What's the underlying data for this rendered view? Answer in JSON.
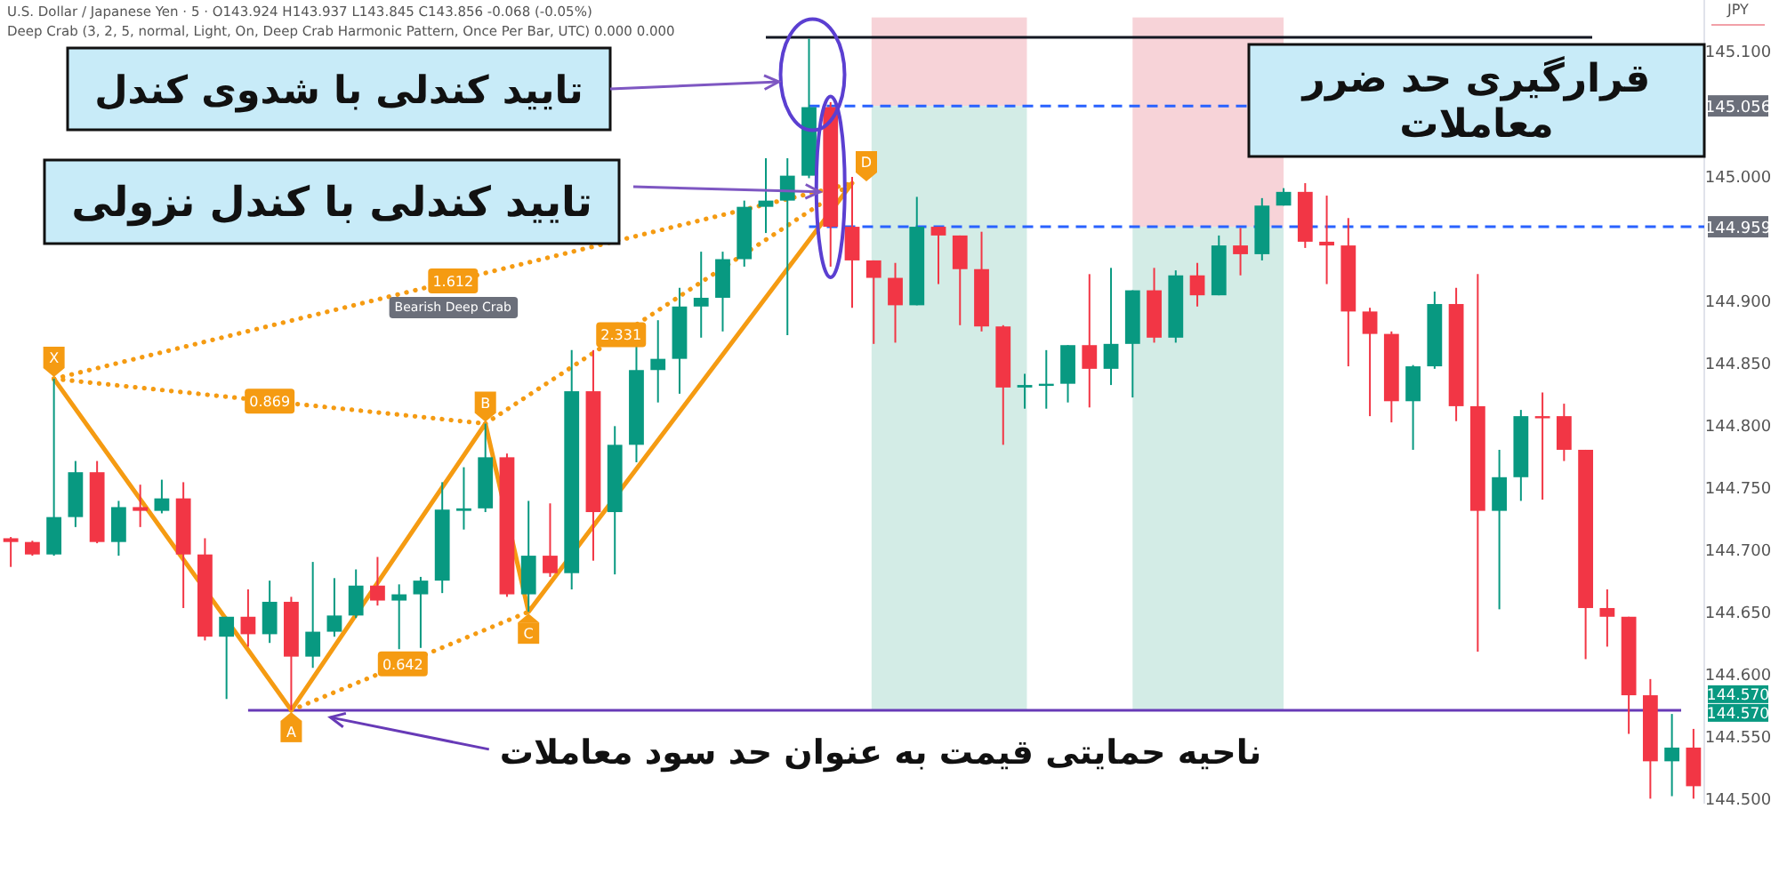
{
  "chart_data": {
    "type": "candlestick",
    "title": "U.S. Dollar / Japanese Yen · 5 · O143.924 H143.937 L143.845 C143.856 -0.068 (-0.05%)",
    "subtitle": "Deep Crab (3, 2, 5, normal, Light, On, Deep Crab Harmonic Pattern, Once Per Bar, UTC) 0.000 0.000",
    "ylabel": "JPY",
    "categories": [
      null,
      null,
      null,
      null,
      null,
      null,
      null,
      null,
      null,
      null,
      null,
      null,
      null,
      null,
      null,
      null,
      null,
      null,
      null,
      null,
      null,
      null,
      null,
      null,
      null,
      null,
      null,
      null,
      null,
      null,
      null,
      null,
      null,
      null,
      null,
      null,
      null,
      null,
      null,
      null,
      null,
      null,
      null,
      null,
      null,
      null,
      null,
      null,
      null,
      null,
      null,
      null,
      null,
      null,
      null,
      null,
      null,
      null,
      null,
      null,
      null,
      null,
      null,
      null,
      null,
      null,
      null,
      null,
      null,
      null,
      null,
      null,
      null,
      null,
      null,
      null,
      null,
      null,
      null
    ],
    "ohlc": [
      [
        144.709,
        144.71,
        144.686,
        144.706
      ],
      [
        144.706,
        144.707,
        144.695,
        144.696
      ],
      [
        144.696,
        144.837,
        144.695,
        144.726
      ],
      [
        144.726,
        144.771,
        144.718,
        144.762
      ],
      [
        144.762,
        144.771,
        144.705,
        144.706
      ],
      [
        144.706,
        144.739,
        144.695,
        144.734
      ],
      [
        144.734,
        144.752,
        144.718,
        144.731
      ],
      [
        144.731,
        144.756,
        144.729,
        144.741
      ],
      [
        144.741,
        144.754,
        144.653,
        144.696
      ],
      [
        144.696,
        144.709,
        144.627,
        144.63
      ],
      [
        144.63,
        144.646,
        144.58,
        144.646
      ],
      [
        144.646,
        144.668,
        144.622,
        144.632
      ],
      [
        144.632,
        144.675,
        144.625,
        144.658
      ],
      [
        144.658,
        144.662,
        144.571,
        144.614
      ],
      [
        144.614,
        144.69,
        144.605,
        144.634
      ],
      [
        144.634,
        144.677,
        144.63,
        144.647
      ],
      [
        144.647,
        144.684,
        144.645,
        144.671
      ],
      [
        144.671,
        144.694,
        144.655,
        144.659
      ],
      [
        144.659,
        144.672,
        144.62,
        144.664
      ],
      [
        144.664,
        144.678,
        144.621,
        144.675
      ],
      [
        144.675,
        144.754,
        144.665,
        144.732
      ],
      [
        144.731,
        144.766,
        144.716,
        144.733
      ],
      [
        144.733,
        144.801,
        144.73,
        144.774
      ],
      [
        144.774,
        144.777,
        144.662,
        144.664
      ],
      [
        144.664,
        144.739,
        144.65,
        144.695
      ],
      [
        144.695,
        144.737,
        144.678,
        144.681
      ],
      [
        144.681,
        144.86,
        144.668,
        144.827
      ],
      [
        144.827,
        144.86,
        144.691,
        144.73
      ],
      [
        144.73,
        144.799,
        144.68,
        144.784
      ],
      [
        144.784,
        144.863,
        144.77,
        144.844
      ],
      [
        144.844,
        144.884,
        144.818,
        144.853
      ],
      [
        144.853,
        144.91,
        144.825,
        144.895
      ],
      [
        144.895,
        144.939,
        144.87,
        144.902
      ],
      [
        144.902,
        144.939,
        144.875,
        144.933
      ],
      [
        144.933,
        144.98,
        144.927,
        144.975
      ],
      [
        144.975,
        145.014,
        144.954,
        144.98
      ],
      [
        144.98,
        145.014,
        144.872,
        145.0
      ],
      [
        145.0,
        145.11,
        144.998,
        145.055
      ],
      [
        145.055,
        145.059,
        144.927,
        144.959
      ],
      [
        144.959,
        144.999,
        144.894,
        144.932
      ],
      [
        144.932,
        144.932,
        144.865,
        144.918
      ],
      [
        144.918,
        144.93,
        144.866,
        144.896
      ],
      [
        144.896,
        144.983,
        144.896,
        144.959
      ],
      [
        144.959,
        144.959,
        144.913,
        144.952
      ],
      [
        144.952,
        144.952,
        144.88,
        144.925
      ],
      [
        144.925,
        144.955,
        144.875,
        144.879
      ],
      [
        144.879,
        144.88,
        144.784,
        144.83
      ],
      [
        144.83,
        144.841,
        144.813,
        144.832
      ],
      [
        144.832,
        144.86,
        144.813,
        144.833
      ],
      [
        144.833,
        144.864,
        144.818,
        144.864
      ],
      [
        144.864,
        144.921,
        144.814,
        144.845
      ],
      [
        144.845,
        144.926,
        144.832,
        144.865
      ],
      [
        144.865,
        144.908,
        144.822,
        144.908
      ],
      [
        144.908,
        144.926,
        144.866,
        144.87
      ],
      [
        144.87,
        144.924,
        144.866,
        144.92
      ],
      [
        144.92,
        144.93,
        144.895,
        144.904
      ],
      [
        144.904,
        144.952,
        144.904,
        144.944
      ],
      [
        144.944,
        144.958,
        144.92,
        144.937
      ],
      [
        144.937,
        144.982,
        144.932,
        144.976
      ],
      [
        144.976,
        144.99,
        144.976,
        144.987
      ],
      [
        144.987,
        144.994,
        144.942,
        144.947
      ],
      [
        144.947,
        144.984,
        144.913,
        144.944
      ],
      [
        144.944,
        144.966,
        144.847,
        144.891
      ],
      [
        144.891,
        144.894,
        144.807,
        144.873
      ],
      [
        144.873,
        144.875,
        144.802,
        144.819
      ],
      [
        144.819,
        144.848,
        144.78,
        144.847
      ],
      [
        144.847,
        144.907,
        144.845,
        144.897
      ],
      [
        144.897,
        144.91,
        144.803,
        144.815
      ],
      [
        144.815,
        144.921,
        144.618,
        144.731
      ],
      [
        144.731,
        144.78,
        144.652,
        144.758
      ],
      [
        144.758,
        144.812,
        144.739,
        144.807
      ],
      [
        144.807,
        144.826,
        144.74,
        144.806
      ],
      [
        144.807,
        144.817,
        144.771,
        144.78
      ],
      [
        144.78,
        144.78,
        144.612,
        144.653
      ],
      [
        144.653,
        144.668,
        144.622,
        144.646
      ],
      [
        144.646,
        144.646,
        144.552,
        144.583
      ],
      [
        144.583,
        144.596,
        144.5,
        144.53
      ],
      [
        144.53,
        144.568,
        144.502,
        144.541
      ],
      [
        144.541,
        144.556,
        144.5,
        144.51
      ]
    ],
    "colors": [
      "#f23645",
      "#f23645",
      "#089981",
      "#089981",
      "#f23645",
      "#089981",
      "#f23645",
      "#089981",
      "#f23645",
      "#f23645",
      "#089981",
      "#f23645",
      "#089981",
      "#f23645",
      "#089981",
      "#089981",
      "#089981",
      "#f23645",
      "#089981",
      "#089981",
      "#089981",
      "#089981",
      "#089981",
      "#f23645",
      "#089981",
      "#f23645",
      "#089981",
      "#f23645",
      "#089981",
      "#089981",
      "#089981",
      "#089981",
      "#089981",
      "#089981",
      "#089981",
      "#089981",
      "#089981",
      "#089981",
      "#f23645",
      "#f23645",
      "#f23645",
      "#f23645",
      "#089981",
      "#f23645",
      "#f23645",
      "#f23645",
      "#f23645",
      "#089981",
      "#089981",
      "#089981",
      "#f23645",
      "#089981",
      "#089981",
      "#f23645",
      "#089981",
      "#f23645",
      "#089981",
      "#f23645",
      "#089981",
      "#089981",
      "#f23645",
      "#f23645",
      "#f23645",
      "#f23645",
      "#f23645",
      "#089981",
      "#089981",
      "#f23645",
      "#f23645",
      "#089981",
      "#089981",
      "#f23645",
      "#f23645",
      "#f23645",
      "#f23645",
      "#f23645",
      "#f23645",
      "#089981",
      "#f23645"
    ],
    "series": [
      {
        "type": "line",
        "color": "#f59b12",
        "line_style": "solid",
        "values": [
          null,
          null,
          144.837,
          null,
          null,
          null,
          null,
          null,
          null,
          null,
          null,
          null,
          null,
          144.571,
          null,
          null,
          null,
          null,
          null,
          null,
          null,
          null,
          144.801,
          null,
          144.65,
          null,
          null,
          null,
          null,
          null,
          null,
          null,
          null,
          null,
          null,
          null,
          null,
          null,
          null,
          144.994,
          null,
          null,
          null,
          null,
          null,
          null,
          null,
          null,
          null,
          null,
          null,
          null,
          null,
          null,
          null,
          null,
          null,
          null,
          null,
          null,
          null,
          null,
          null,
          null,
          null,
          null,
          null,
          null,
          null,
          null,
          null,
          null,
          null,
          null,
          null,
          null,
          null,
          null,
          null
        ],
        "value_labels": [
          null,
          null,
          "X",
          null,
          null,
          null,
          null,
          null,
          null,
          null,
          null,
          null,
          null,
          "A",
          null,
          null,
          null,
          null,
          null,
          null,
          null,
          null,
          "B",
          null,
          "C",
          null,
          null,
          null,
          null,
          null,
          null,
          null,
          null,
          null,
          null,
          null,
          null,
          null,
          null,
          "D",
          null,
          null,
          null,
          null,
          null,
          null,
          null,
          null,
          null,
          null,
          null,
          null,
          null,
          null,
          null,
          null,
          null,
          null,
          null,
          null,
          null,
          null,
          null,
          null,
          null,
          null,
          null,
          null,
          null,
          null,
          null,
          null,
          null,
          null,
          null,
          null,
          null,
          null,
          null
        ]
      },
      {
        "type": "line",
        "name": "1.612",
        "color": "#f59b12",
        "line_style": "dotted",
        "values": [
          null,
          null,
          144.837,
          null,
          null,
          null,
          null,
          null,
          null,
          null,
          null,
          null,
          null,
          null,
          null,
          null,
          null,
          null,
          null,
          null,
          null,
          null,
          null,
          null,
          null,
          null,
          null,
          null,
          null,
          null,
          null,
          null,
          null,
          null,
          null,
          null,
          null,
          null,
          null,
          144.994,
          null,
          null,
          null,
          null,
          null,
          null,
          null,
          null,
          null,
          null,
          null,
          null,
          null,
          null,
          null,
          null,
          null,
          null,
          null,
          null,
          null,
          null,
          null,
          null,
          null,
          null,
          null,
          null,
          null,
          null,
          null,
          null,
          null,
          null,
          null,
          null,
          null,
          null,
          null
        ]
      },
      {
        "type": "line",
        "name": "0.869",
        "color": "#f59b12",
        "line_style": "dotted",
        "values": [
          null,
          null,
          144.837,
          null,
          null,
          null,
          null,
          null,
          null,
          null,
          null,
          null,
          null,
          null,
          null,
          null,
          null,
          null,
          null,
          null,
          null,
          null,
          144.801,
          null,
          null,
          null,
          null,
          null,
          null,
          null,
          null,
          null,
          null,
          null,
          null,
          null,
          null,
          null,
          null,
          null,
          null,
          null,
          null,
          null,
          null,
          null,
          null,
          null,
          null,
          null,
          null,
          null,
          null,
          null,
          null,
          null,
          null,
          null,
          null,
          null,
          null,
          null,
          null,
          null,
          null,
          null,
          null,
          null,
          null,
          null,
          null,
          null,
          null,
          null,
          null,
          null,
          null,
          null,
          null
        ]
      },
      {
        "type": "line",
        "name": "0.642",
        "color": "#f59b12",
        "line_style": "dotted",
        "values": [
          null,
          null,
          null,
          null,
          null,
          null,
          null,
          null,
          null,
          null,
          null,
          null,
          null,
          144.571,
          null,
          null,
          null,
          null,
          null,
          null,
          null,
          null,
          null,
          null,
          144.65,
          null,
          null,
          null,
          null,
          null,
          null,
          null,
          null,
          null,
          null,
          null,
          null,
          null,
          null,
          null,
          null,
          null,
          null,
          null,
          null,
          null,
          null,
          null,
          null,
          null,
          null,
          null,
          null,
          null,
          null,
          null,
          null,
          null,
          null,
          null,
          null,
          null,
          null,
          null,
          null,
          null,
          null,
          null,
          null,
          null,
          null,
          null,
          null,
          null,
          null,
          null,
          null,
          null,
          null
        ]
      },
      {
        "type": "line",
        "name": "2.331",
        "color": "#f59b12",
        "line_style": "dotted",
        "values": [
          null,
          null,
          null,
          null,
          null,
          null,
          null,
          null,
          null,
          null,
          null,
          null,
          null,
          null,
          null,
          null,
          null,
          null,
          null,
          null,
          null,
          null,
          144.801,
          null,
          null,
          null,
          null,
          null,
          null,
          null,
          null,
          null,
          null,
          null,
          null,
          null,
          null,
          null,
          null,
          144.994,
          null,
          null,
          null,
          null,
          null,
          null,
          null,
          null,
          null,
          null,
          null,
          null,
          null,
          null,
          null,
          null,
          null,
          null,
          null,
          null,
          null,
          null,
          null,
          null,
          null,
          null,
          null,
          null,
          null,
          null,
          null,
          null,
          null,
          null,
          null,
          null,
          null,
          null,
          null
        ]
      }
    ],
    "ylim": [
      144.496,
      145.141
    ],
    "yticks": [
      {
        "value": 144.5,
        "label": "144.500"
      },
      {
        "value": 144.55,
        "label": "144.550"
      },
      {
        "value": 144.6,
        "label": "144.600"
      },
      {
        "value": 144.65,
        "label": "144.650"
      },
      {
        "value": 144.7,
        "label": "144.700"
      },
      {
        "value": 144.75,
        "label": "144.750"
      },
      {
        "value": 144.8,
        "label": "144.800"
      },
      {
        "value": 144.85,
        "label": "144.850"
      },
      {
        "value": 144.9,
        "label": "144.900"
      },
      {
        "value": 145.0,
        "label": "145.000"
      },
      {
        "value": 145.1,
        "label": "145.100"
      }
    ],
    "tick_labels": "y",
    "ref_lines": [
      {
        "axis": "y",
        "value": 145.111,
        "color": "#131722"
      },
      {
        "axis": "y",
        "value": 145.056,
        "label": "145.056",
        "color": "#2962ff",
        "line_style": "dashed"
      },
      {
        "axis": "y",
        "value": 144.959,
        "label": "144.959",
        "color": "#2962ff",
        "line_style": "dashed"
      },
      {
        "axis": "y",
        "value": 144.571,
        "label": "ناحیه حمایتی قیمت به عنوان حد سود معاملات",
        "color": "#673ab7"
      }
    ],
    "annotations": [
      "تایید کندلی با شدوی کندل",
      "تایید کندلی با کندل نزولی",
      "قرارگیری حد ضرر معاملات",
      "Bearish Deep Crab",
      "144.570",
      "144.570"
    ]
  }
}
